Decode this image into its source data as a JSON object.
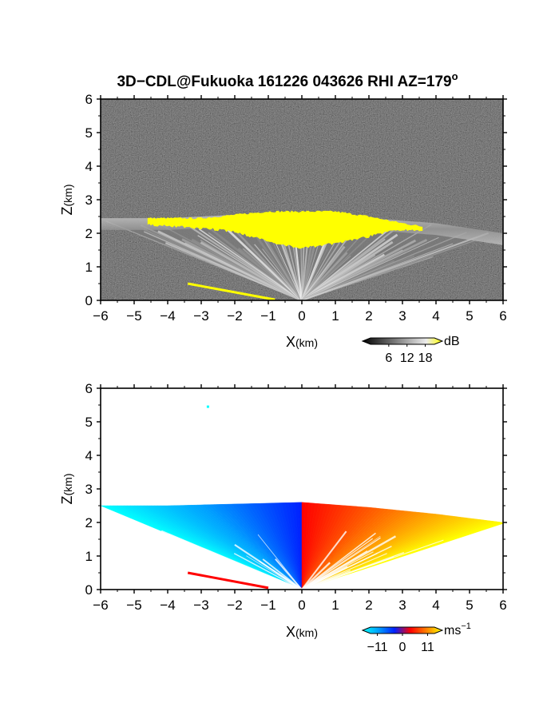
{
  "title": "3D−CDL@Fukuoka 161226 043626 RHI AZ=179",
  "title_degree": "o",
  "chart_data": [
    {
      "type": "heatmap",
      "name": "signal-intensity-panel",
      "xlabel": "X",
      "xlabel_unit": "(km)",
      "ylabel": "Z",
      "ylabel_unit": "(km)",
      "xlim": [
        -6,
        6
      ],
      "ylim": [
        0,
        6
      ],
      "xticks": [
        "−6",
        "−5",
        "−4",
        "−3",
        "−2",
        "−1",
        "0",
        "1",
        "2",
        "3",
        "4",
        "5",
        "6"
      ],
      "yticks": [
        "0",
        "1",
        "2",
        "3",
        "4",
        "5",
        "6"
      ],
      "colorbar": {
        "unit": "dB",
        "ticks": [
          "6",
          "12",
          "18"
        ],
        "colors": [
          "#000000",
          "#3c3c3c",
          "#777777",
          "#b4b4b4",
          "#ececec",
          "#ffff00"
        ],
        "range": [
          0,
          21
        ]
      },
      "saturated_layer": {
        "z_bottom_km": [
          [
            -4.6,
            2.25
          ],
          [
            -3.0,
            2.15
          ],
          [
            -2.0,
            2.05
          ],
          [
            -1.0,
            1.75
          ],
          [
            0.0,
            1.55
          ],
          [
            1.0,
            1.7
          ],
          [
            2.0,
            1.9
          ],
          [
            2.8,
            2.1
          ],
          [
            3.6,
            2.1
          ]
        ],
        "z_top_km": [
          [
            -4.6,
            2.45
          ],
          [
            -3.0,
            2.45
          ],
          [
            -2.0,
            2.55
          ],
          [
            -1.0,
            2.65
          ],
          [
            0.0,
            2.65
          ],
          [
            1.0,
            2.65
          ],
          [
            2.0,
            2.5
          ],
          [
            3.0,
            2.3
          ],
          [
            3.6,
            2.2
          ]
        ]
      },
      "haze_top_km": [
        [
          -6.0,
          2.45
        ],
        [
          -4.0,
          2.45
        ],
        [
          -2.0,
          2.55
        ],
        [
          0.0,
          2.6
        ],
        [
          2.0,
          2.45
        ],
        [
          4.0,
          2.3
        ],
        [
          6.0,
          2.0
        ]
      ],
      "ground_streak": {
        "x_km": [
          -3.4,
          -0.8
        ],
        "z_km": [
          0.5,
          0.02
        ]
      }
    },
    {
      "type": "heatmap",
      "name": "radial-velocity-panel",
      "xlabel": "X",
      "xlabel_unit": "(km)",
      "ylabel": "Z",
      "ylabel_unit": "(km)",
      "xlim": [
        -6,
        6
      ],
      "ylim": [
        0,
        6
      ],
      "xticks": [
        "−6",
        "−5",
        "−4",
        "−3",
        "−2",
        "−1",
        "0",
        "1",
        "2",
        "3",
        "4",
        "5",
        "6"
      ],
      "yticks": [
        "0",
        "1",
        "2",
        "3",
        "4",
        "5",
        "6"
      ],
      "colorbar": {
        "unit": "ms",
        "unit_exponent": "−1",
        "ticks": [
          "−11",
          "0",
          "11"
        ],
        "colors": [
          "#00ffff",
          "#00a0ff",
          "#0020ff",
          "#ff0000",
          "#ff8000",
          "#ffff00"
        ],
        "range": [
          -14,
          14
        ]
      },
      "echo_top_km": [
        [
          -6.0,
          2.5
        ],
        [
          -4.0,
          2.5
        ],
        [
          -2.0,
          2.55
        ],
        [
          0.0,
          2.6
        ],
        [
          2.0,
          2.45
        ],
        [
          4.0,
          2.25
        ],
        [
          6.0,
          2.0
        ]
      ],
      "velocity_at_edges_ms": {
        "left_far": -11,
        "center": 0,
        "right_far": 11
      },
      "isolated_point": {
        "x_km": -2.8,
        "z_km": 5.45
      },
      "ground_streak": {
        "x_km": [
          -3.4,
          -1.0
        ],
        "z_km": [
          0.5,
          0.05
        ],
        "color": "#ff0000"
      }
    }
  ]
}
